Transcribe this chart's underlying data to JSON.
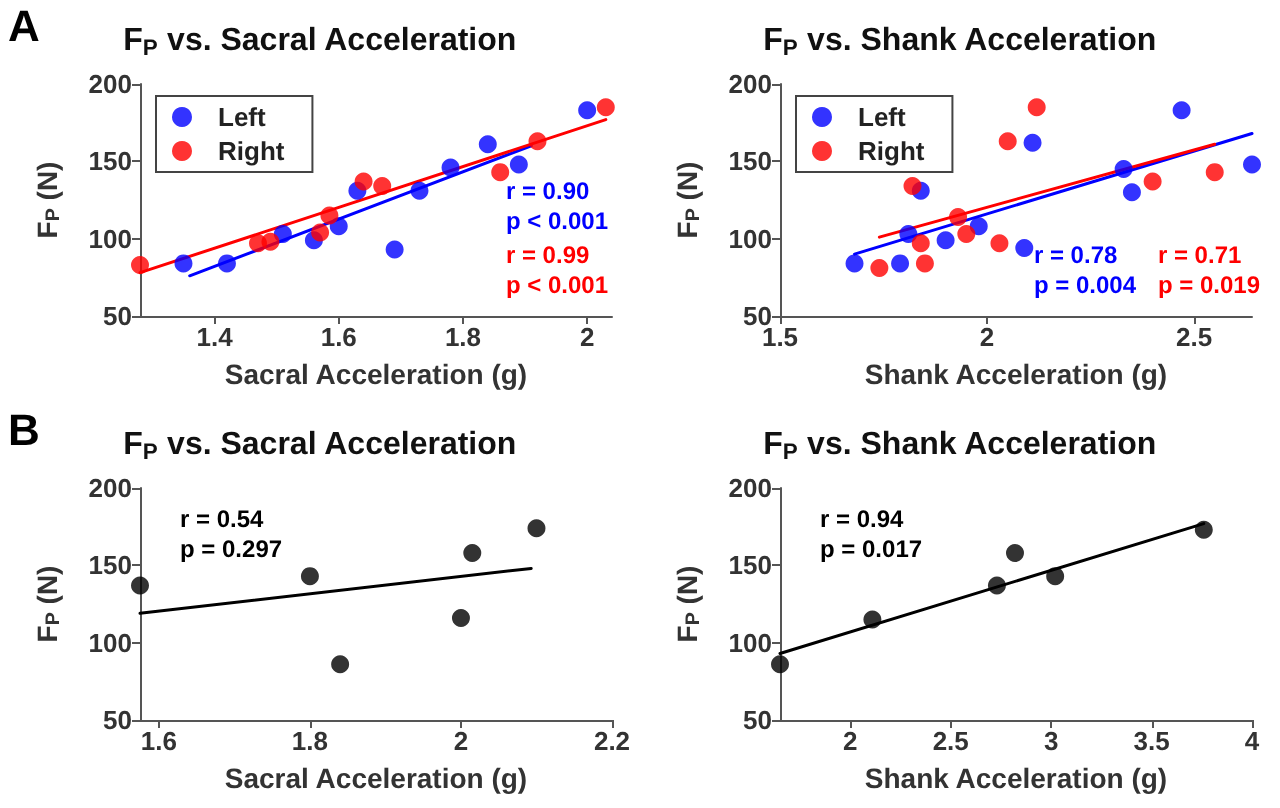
{
  "chart_data": [
    {
      "type": "scatter",
      "title": "F$_{P}$ vs. Sacral Acceleration",
      "xlabel": "Sacral Acceleration (g)",
      "ylabel": "F$_{P}$ (N)",
      "xlim": [
        1.28,
        2.04
      ],
      "xticks": [
        1.4,
        1.6,
        1.8,
        2
      ],
      "ylim": [
        50,
        200
      ],
      "yticks": [
        50,
        100,
        150,
        200
      ],
      "legend": "top left",
      "marker": "circle",
      "annotations": [
        "A",
        "r = 0.90\np < 0.001",
        "r = 0.99\np < 0.001"
      ],
      "series": [
        {
          "name": "Left",
          "color": "#0000ff",
          "x": [
            1.35,
            1.42,
            1.51,
            1.56,
            1.6,
            1.63,
            1.69,
            1.73,
            1.78,
            1.84,
            1.89,
            2.0
          ],
          "values": [
            84,
            84,
            103,
            99,
            108,
            131,
            93,
            131,
            146,
            161,
            148,
            183
          ]
        },
        {
          "name": "Right",
          "color": "#ff0000",
          "x": [
            1.28,
            1.47,
            1.49,
            1.57,
            1.585,
            1.64,
            1.67,
            1.86,
            1.92,
            2.03
          ],
          "values": [
            83,
            97,
            98,
            104,
            115,
            137,
            134,
            143,
            163,
            185
          ]
        },
        {
          "type": "line",
          "marker": "none",
          "color": "#0000ff",
          "x": [
            1.36,
            1.91
          ],
          "values": [
            76,
            160
          ]
        },
        {
          "type": "line",
          "marker": "none",
          "color": "#ff0000",
          "x": [
            1.28,
            2.03
          ],
          "values": [
            78,
            177
          ]
        }
      ]
    },
    {
      "type": "scatter",
      "title": "F$_{P}$ vs. Shank Acceleration",
      "xlabel": "Shank Acceleration (g)",
      "ylabel": "F$_{P}$ (N)",
      "xlim": [
        1.5,
        2.64
      ],
      "xticks": [
        1.5,
        2,
        2.5
      ],
      "ylim": [
        50,
        200
      ],
      "yticks": [
        50,
        100,
        150,
        200
      ],
      "legend": "top left",
      "marker": "circle",
      "annotations": [
        "r = 0.78\np = 0.004",
        "r = 0.71\np = 0.019"
      ],
      "series": [
        {
          "name": "Left",
          "color": "#0000ff",
          "x": [
            1.68,
            1.79,
            1.84,
            1.81,
            1.9,
            1.98,
            2.09,
            2.11,
            2.33,
            2.35,
            2.47,
            2.64
          ],
          "values": [
            84,
            84,
            131,
            103,
            99,
            108,
            94,
            162,
            145,
            130,
            183,
            148
          ]
        },
        {
          "name": "Right",
          "color": "#ff0000",
          "x": [
            1.74,
            1.82,
            1.84,
            1.85,
            1.93,
            1.95,
            2.03,
            2.05,
            2.12,
            2.4,
            2.55
          ],
          "values": [
            81,
            134,
            97,
            84,
            114,
            103,
            97,
            163,
            185,
            137,
            143
          ]
        },
        {
          "type": "line",
          "marker": "none",
          "color": "#0000ff",
          "x": [
            1.68,
            2.64
          ],
          "values": [
            90,
            168
          ]
        },
        {
          "type": "line",
          "marker": "none",
          "color": "#ff0000",
          "x": [
            1.74,
            2.55
          ],
          "values": [
            101,
            161
          ]
        }
      ]
    },
    {
      "type": "scatter",
      "title": "F$_{P}$ vs. Sacral Acceleration",
      "xlabel": "Sacral Acceleration (g)",
      "ylabel": "F$_{P}$ (N)",
      "xlim": [
        1.575,
        2.2
      ],
      "xticks": [
        1.6,
        1.8,
        2,
        2.2
      ],
      "ylim": [
        50,
        200
      ],
      "yticks": [
        50,
        100,
        150,
        200
      ],
      "marker": "circle",
      "annotations": [
        "B",
        "r = 0.54\np = 0.297"
      ],
      "series": [
        {
          "color": "#000000",
          "x": [
            1.575,
            1.8,
            1.84,
            2.0,
            2.015,
            2.1
          ],
          "values": [
            137,
            143,
            86,
            116,
            158,
            174
          ]
        },
        {
          "type": "line",
          "marker": "none",
          "color": "#000000",
          "x": [
            1.575,
            2.093
          ],
          "values": [
            119,
            148
          ]
        }
      ]
    },
    {
      "type": "scatter",
      "title": "F$_{P}$ vs. Shank Acceleration",
      "xlabel": "Shank Acceleration (g)",
      "ylabel": "F$_{P}$ (N)",
      "xlim": [
        1.65,
        4
      ],
      "xticks": [
        2,
        2.5,
        3,
        3.5,
        4
      ],
      "ylim": [
        50,
        200
      ],
      "yticks": [
        50,
        100,
        150,
        200
      ],
      "marker": "circle",
      "annotations": [
        "r = 0.94\np = 0.017"
      ],
      "series": [
        {
          "color": "#000000",
          "x": [
            1.65,
            2.11,
            2.73,
            2.82,
            3.02,
            3.76
          ],
          "values": [
            86,
            115,
            137,
            158,
            143,
            173
          ]
        },
        {
          "type": "line",
          "marker": "none",
          "color": "#000000",
          "x": [
            1.65,
            3.76
          ],
          "values": [
            93,
            177
          ]
        }
      ]
    }
  ]
}
